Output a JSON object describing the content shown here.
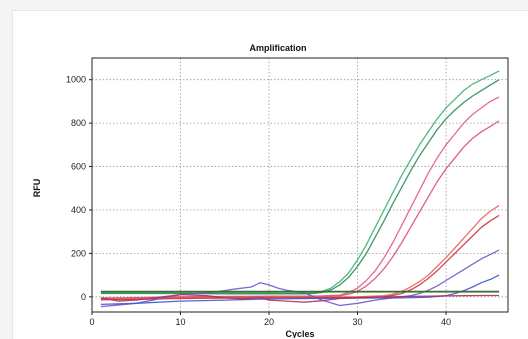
{
  "chart_data": {
    "type": "line",
    "title": "Amplification",
    "xlabel": "Cycles",
    "ylabel": "RFU",
    "xlim": [
      0,
      47
    ],
    "ylim": [
      -70,
      1100
    ],
    "xticks": [
      0,
      10,
      20,
      30,
      40
    ],
    "yticks": [
      0,
      200,
      400,
      600,
      800,
      1000
    ],
    "grid": true,
    "series": [
      {
        "color": "#3cb371",
        "x": [
          1,
          5,
          10,
          15,
          20,
          22,
          24,
          25,
          26,
          27,
          28,
          29,
          30,
          31,
          32,
          33,
          34,
          35,
          36,
          37,
          38,
          39,
          40,
          41,
          42,
          43,
          44,
          45,
          46
        ],
        "y": [
          18,
          18,
          17,
          17,
          17,
          16,
          16,
          18,
          25,
          40,
          70,
          110,
          170,
          240,
          320,
          400,
          480,
          560,
          630,
          700,
          760,
          820,
          870,
          910,
          950,
          980,
          1000,
          1020,
          1040
        ]
      },
      {
        "color": "#2e8b57",
        "x": [
          1,
          5,
          10,
          15,
          20,
          22,
          24,
          25,
          26,
          27,
          28,
          29,
          30,
          31,
          32,
          33,
          34,
          35,
          36,
          37,
          38,
          39,
          40,
          41,
          42,
          43,
          44,
          45,
          46
        ],
        "y": [
          15,
          15,
          15,
          14,
          14,
          14,
          14,
          15,
          20,
          32,
          55,
          90,
          140,
          200,
          275,
          350,
          430,
          505,
          580,
          650,
          710,
          770,
          820,
          860,
          895,
          925,
          950,
          975,
          1000
        ]
      },
      {
        "color": "#e05a8a",
        "x": [
          1,
          5,
          10,
          15,
          20,
          24,
          26,
          28,
          29,
          30,
          31,
          32,
          33,
          34,
          35,
          36,
          37,
          38,
          39,
          40,
          41,
          42,
          43,
          44,
          45,
          46
        ],
        "y": [
          -5,
          -3,
          0,
          2,
          3,
          3,
          4,
          8,
          20,
          40,
          75,
          120,
          180,
          250,
          330,
          410,
          490,
          570,
          640,
          700,
          750,
          800,
          840,
          870,
          900,
          920
        ]
      },
      {
        "color": "#d94f7a",
        "x": [
          1,
          5,
          10,
          15,
          20,
          24,
          26,
          28,
          29,
          30,
          31,
          32,
          33,
          34,
          35,
          36,
          37,
          38,
          39,
          40,
          41,
          42,
          43,
          44,
          45,
          46
        ],
        "y": [
          -8,
          -6,
          -2,
          0,
          1,
          1,
          2,
          5,
          12,
          25,
          50,
          85,
          130,
          185,
          250,
          320,
          390,
          460,
          530,
          590,
          640,
          690,
          730,
          760,
          785,
          810
        ]
      },
      {
        "color": "#e0665a",
        "x": [
          1,
          5,
          10,
          15,
          20,
          25,
          30,
          33,
          34,
          35,
          36,
          37,
          38,
          39,
          40,
          41,
          42,
          43,
          44,
          45,
          46
        ],
        "y": [
          -10,
          -8,
          -5,
          -3,
          -2,
          -1,
          0,
          5,
          12,
          25,
          45,
          70,
          100,
          140,
          180,
          225,
          270,
          315,
          360,
          395,
          420
        ]
      },
      {
        "color": "#cc3333",
        "x": [
          1,
          5,
          10,
          15,
          20,
          25,
          30,
          33,
          34,
          35,
          36,
          37,
          38,
          39,
          40,
          41,
          42,
          43,
          44,
          45,
          46
        ],
        "y": [
          -14,
          -12,
          -8,
          -6,
          -5,
          -4,
          -3,
          0,
          6,
          15,
          32,
          55,
          85,
          120,
          160,
          200,
          240,
          280,
          320,
          350,
          375
        ]
      },
      {
        "color": "#6a5acd",
        "x": [
          1,
          5,
          10,
          14,
          16,
          18,
          19,
          20,
          21,
          22,
          24,
          26,
          28,
          30,
          32,
          34,
          36,
          37,
          38,
          39,
          40,
          41,
          42,
          43,
          44,
          45,
          46
        ],
        "y": [
          -45,
          -30,
          10,
          22,
          35,
          45,
          65,
          55,
          40,
          30,
          18,
          -15,
          -40,
          -30,
          -15,
          -5,
          5,
          15,
          30,
          50,
          75,
          100,
          125,
          150,
          175,
          195,
          215
        ]
      },
      {
        "color": "#4455cc",
        "x": [
          1,
          5,
          10,
          15,
          20,
          25,
          30,
          35,
          38,
          40,
          41,
          42,
          43,
          44,
          45,
          46
        ],
        "y": [
          -35,
          -30,
          -20,
          -15,
          -10,
          -8,
          -6,
          -5,
          -2,
          5,
          15,
          28,
          45,
          65,
          80,
          100
        ]
      },
      {
        "color": "#b03060",
        "x": [
          1,
          3,
          5,
          8,
          10,
          13,
          15,
          17,
          19,
          20,
          22,
          24,
          26,
          28,
          30,
          32,
          34,
          36,
          38,
          40,
          42,
          44,
          46
        ],
        "y": [
          -5,
          -20,
          -15,
          0,
          10,
          5,
          -5,
          -10,
          -3,
          -15,
          -20,
          -25,
          -18,
          -8,
          -5,
          -2,
          0,
          2,
          3,
          4,
          5,
          6,
          6
        ]
      },
      {
        "color": "#5a3a3a",
        "x": [
          1,
          10,
          20,
          30,
          40,
          46
        ],
        "y": [
          25,
          25,
          25,
          25,
          25,
          25
        ]
      },
      {
        "color": "#1a8a1a",
        "x": [
          1,
          10,
          20,
          30,
          40,
          46
        ],
        "y": [
          22,
          22,
          22,
          22,
          22,
          22
        ]
      }
    ]
  }
}
